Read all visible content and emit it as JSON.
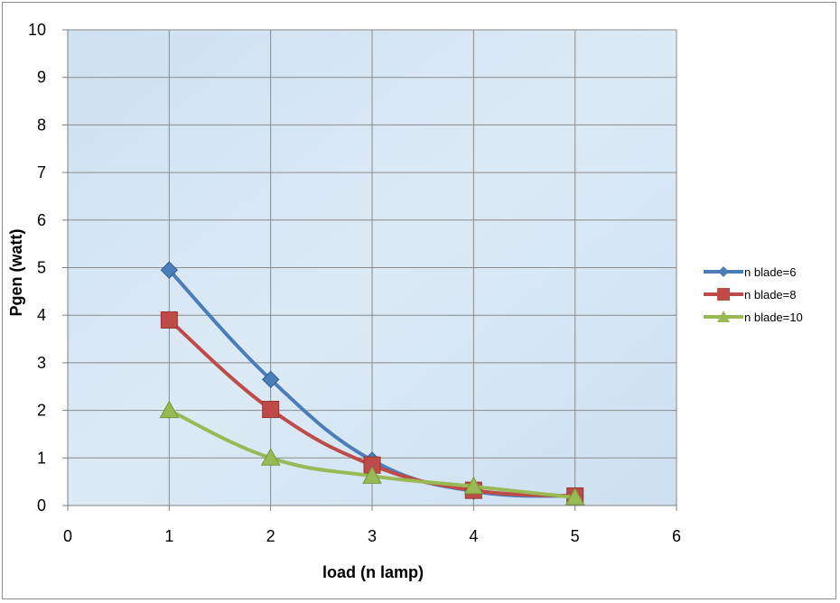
{
  "chart_data": {
    "type": "line",
    "title": "",
    "xlabel": "load (n lamp)",
    "ylabel": "Pgen (watt)",
    "xlim": [
      0,
      6
    ],
    "ylim": [
      0,
      10
    ],
    "x_ticks": [
      "0",
      "1",
      "2",
      "3",
      "4",
      "5",
      "6"
    ],
    "y_ticks": [
      "0",
      "1",
      "2",
      "3",
      "4",
      "5",
      "6",
      "7",
      "8",
      "9",
      "10"
    ],
    "grid": true,
    "smooth": true,
    "legend_position": "right",
    "series": [
      {
        "name": "n blade=6",
        "color": "#4a7ebb",
        "marker": "diamond",
        "x": [
          1,
          2,
          3,
          4,
          5
        ],
        "y": [
          4.95,
          2.65,
          0.95,
          0.3,
          0.2
        ]
      },
      {
        "name": "n blade=8",
        "color": "#be4b48",
        "marker": "square",
        "x": [
          1,
          2,
          3,
          4,
          5
        ],
        "y": [
          3.9,
          2.02,
          0.85,
          0.32,
          0.2
        ]
      },
      {
        "name": "n blade=10",
        "color": "#98b954",
        "marker": "triangle",
        "x": [
          1,
          2,
          3,
          4,
          5
        ],
        "y": [
          2.0,
          1.0,
          0.62,
          0.4,
          0.17
        ]
      }
    ]
  }
}
